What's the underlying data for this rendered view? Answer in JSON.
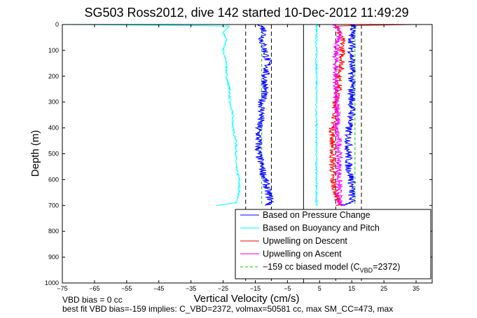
{
  "chart_data": {
    "type": "line",
    "title": "SG503 Ross2012, dive 142 started 10-Dec-2012 11:49:29",
    "xlabel": "Vertical Velocity (cm/s)",
    "ylabel": "Depth (m)",
    "xlim": [
      -75,
      40
    ],
    "ylim": [
      1000,
      0
    ],
    "y_reversed": true,
    "grid": false,
    "legend_position": "bottom-right",
    "xticks": [
      -75,
      -65,
      -55,
      -45,
      -35,
      -25,
      -15,
      -5,
      5,
      15,
      25,
      35
    ],
    "yticks": [
      0,
      100,
      200,
      300,
      400,
      500,
      600,
      700,
      800,
      900,
      1000
    ],
    "reference_lines": [
      {
        "x": 0,
        "style": "solid"
      },
      {
        "x": -18,
        "style": "dashed"
      },
      {
        "x": -10,
        "style": "dashed"
      },
      {
        "x": 10,
        "style": "dashed"
      },
      {
        "x": 18,
        "style": "dashed"
      }
    ],
    "series": [
      {
        "name": "Based on Pressure Change",
        "color": "#0000ff",
        "noise": 1.2,
        "depth": [
          0,
          5,
          30,
          60,
          100,
          150,
          200,
          250,
          300,
          350,
          400,
          450,
          500,
          550,
          600,
          650,
          690,
          700
        ],
        "descent": [
          -13,
          -13,
          -12,
          -13,
          -12,
          -11,
          -12,
          -12,
          -13,
          -13,
          -14,
          -14,
          -14,
          -13,
          -12,
          -11,
          -10,
          -12
        ],
        "ascent": [
          15,
          16,
          15,
          15,
          15,
          15,
          15,
          15,
          15,
          15,
          14,
          14,
          14,
          14,
          15,
          15,
          15,
          12
        ]
      },
      {
        "name": "Based on Buoyancy and Pitch",
        "color": "#00ffff",
        "noise": 0.3,
        "depth": [
          0,
          5,
          30,
          60,
          100,
          150,
          200,
          250,
          300,
          350,
          400,
          450,
          500,
          550,
          600,
          650,
          690,
          700
        ],
        "descent": [
          -75,
          -23,
          -25,
          -24,
          -25,
          -24,
          -24,
          -23,
          -23,
          -22,
          -22,
          -21,
          -21,
          -21,
          -20,
          -20,
          -21,
          -27
        ],
        "ascent": [
          5,
          4,
          4,
          4,
          4,
          4,
          4,
          4,
          4,
          4,
          4,
          4,
          4,
          4,
          4,
          4,
          4,
          4
        ]
      },
      {
        "name": "Upwelling on Descent",
        "color": "#ff0000",
        "noise": 1.0,
        "depth": [
          0,
          5,
          30,
          60,
          100,
          150,
          200,
          250,
          300,
          350,
          400,
          450,
          500,
          550,
          600,
          650,
          690,
          700
        ],
        "values": [
          35,
          11,
          11,
          12,
          12,
          12,
          11,
          11,
          10,
          10,
          9,
          9,
          9,
          9,
          9,
          10,
          11,
          11
        ]
      },
      {
        "name": "Upwelling on Ascent",
        "color": "#ff00ff",
        "noise": 1.0,
        "depth": [
          0,
          5,
          30,
          60,
          100,
          150,
          200,
          250,
          300,
          350,
          400,
          450,
          500,
          550,
          600,
          650,
          690,
          700
        ],
        "values": [
          10,
          10,
          11,
          11,
          10,
          10,
          10,
          10,
          10,
          11,
          10,
          11,
          11,
          11,
          11,
          11,
          11,
          12
        ]
      },
      {
        "name": "−159 cc biased model (C",
        "name_sub": "VBD",
        "name_tail": "=2372)",
        "color": "#00cc00",
        "dashed": true,
        "depth": [
          0,
          50,
          100,
          200,
          300,
          400,
          500,
          600,
          690,
          700
        ],
        "descent": [
          -13,
          -13,
          -13,
          -13,
          -13,
          -13,
          -13,
          -13,
          -13,
          -13
        ],
        "ascent": [
          16,
          16,
          16,
          16,
          16,
          16,
          16,
          16,
          16,
          16
        ]
      }
    ]
  },
  "footer": {
    "line1": "VBD bias = 0 cc",
    "line2": "best fit VBD bias=-159 implies: C_VBD=2372, volmax=50581 cc, max SM_CC=473, max"
  }
}
